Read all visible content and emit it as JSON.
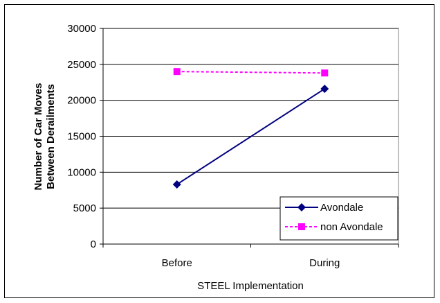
{
  "chart_data": {
    "type": "line",
    "title": "",
    "xlabel": "STEEL Implementation",
    "ylabel_lines": [
      "Number of Car Moves",
      "Between Derailments"
    ],
    "categories": [
      "Before",
      "During"
    ],
    "ylim": [
      0,
      30000
    ],
    "yticks": [
      0,
      5000,
      10000,
      15000,
      20000,
      25000,
      30000
    ],
    "grid": true,
    "legend_position": "bottom-right",
    "series": [
      {
        "name": "Avondale",
        "values": [
          8300,
          21600
        ],
        "color": "#000080",
        "marker": "diamond",
        "line": "solid"
      },
      {
        "name": "non Avondale",
        "values": [
          24000,
          23800
        ],
        "color": "#ff00ff",
        "marker": "square",
        "line": "dashed"
      }
    ]
  }
}
